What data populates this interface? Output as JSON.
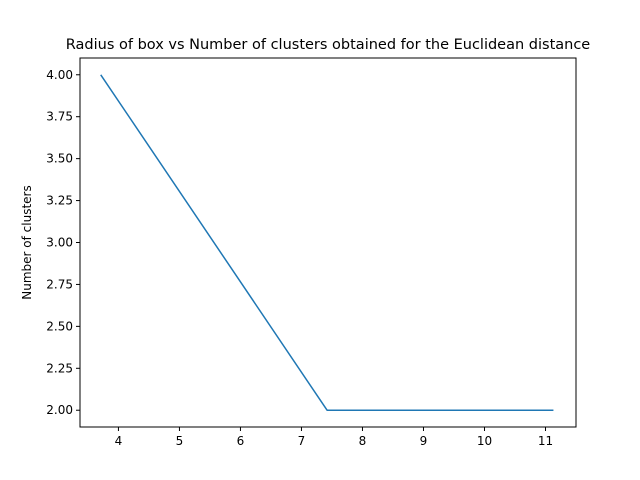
{
  "chart_data": {
    "type": "line",
    "title": "Radius of box vs Number of clusters obtained for the Euclidean distance",
    "xlabel": "",
    "ylabel": "Number of clusters",
    "xlim": [
      3.37,
      11.5
    ],
    "ylim": [
      1.9,
      4.1
    ],
    "xticks": [
      4,
      5,
      6,
      7,
      8,
      9,
      10,
      11
    ],
    "xtick_labels": [
      "4",
      "5",
      "6",
      "7",
      "8",
      "9",
      "10",
      "11"
    ],
    "yticks": [
      2.0,
      2.25,
      2.5,
      2.75,
      3.0,
      3.25,
      3.5,
      3.75,
      4.0
    ],
    "ytick_labels": [
      "2.00",
      "2.25",
      "2.50",
      "2.75",
      "3.00",
      "3.25",
      "3.50",
      "3.75",
      "4.00"
    ],
    "grid": false,
    "series": [
      {
        "color": "#1f77b4",
        "x": [
          3.71,
          7.42,
          11.13
        ],
        "y": [
          4,
          2,
          2
        ]
      }
    ]
  }
}
